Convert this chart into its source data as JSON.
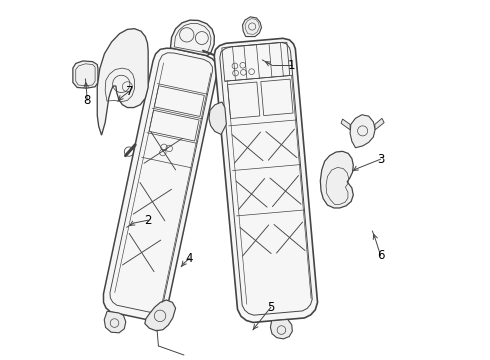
{
  "background_color": "#ffffff",
  "line_color": "#444444",
  "label_color": "#000000",
  "figsize": [
    4.9,
    3.6
  ],
  "dpi": 100
}
